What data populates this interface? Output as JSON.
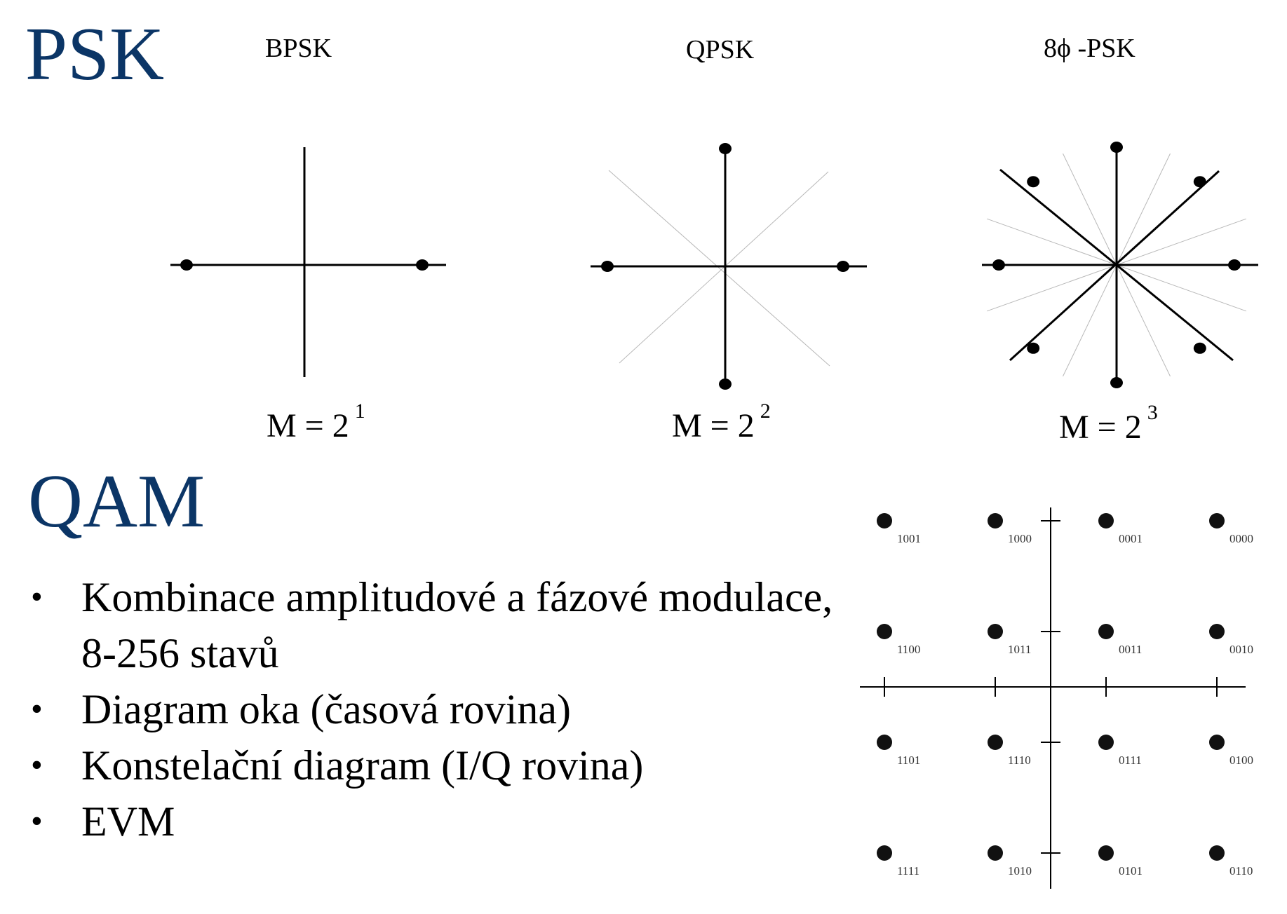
{
  "psk": {
    "title": "PSK",
    "diagrams": [
      {
        "label": "BPSK",
        "order_base": "M = 2",
        "order_exp": "1",
        "points": 2,
        "phase_offset_deg": 0
      },
      {
        "label": "QPSK",
        "order_base": "M = 2",
        "order_exp": "2",
        "points": 4,
        "phase_offset_deg": 0
      },
      {
        "label": "8ϕ -PSK",
        "order_base": "M = 2",
        "order_exp": "3",
        "points": 8,
        "phase_offset_deg": 0
      }
    ]
  },
  "qam": {
    "title": "QAM",
    "bullets": [
      "Kombinace amplitudové a fázové modulace, 8-256 stavů",
      "Diagram oka (časová rovina)",
      "Konstelační diagram (I/Q rovina)",
      "EVM"
    ],
    "constellation": {
      "levels": [
        -3,
        -1,
        1,
        3
      ],
      "rows": [
        [
          "1001",
          "1000",
          "0001",
          "0000"
        ],
        [
          "1100",
          "1011",
          "0011",
          "0010"
        ],
        [
          "1101",
          "1110",
          "0111",
          "0100"
        ],
        [
          "1111",
          "1010",
          "0101",
          "0110"
        ]
      ]
    }
  },
  "colors": {
    "title": "#0b3566",
    "ink": "#000000",
    "guide": "#b8b8b8"
  }
}
